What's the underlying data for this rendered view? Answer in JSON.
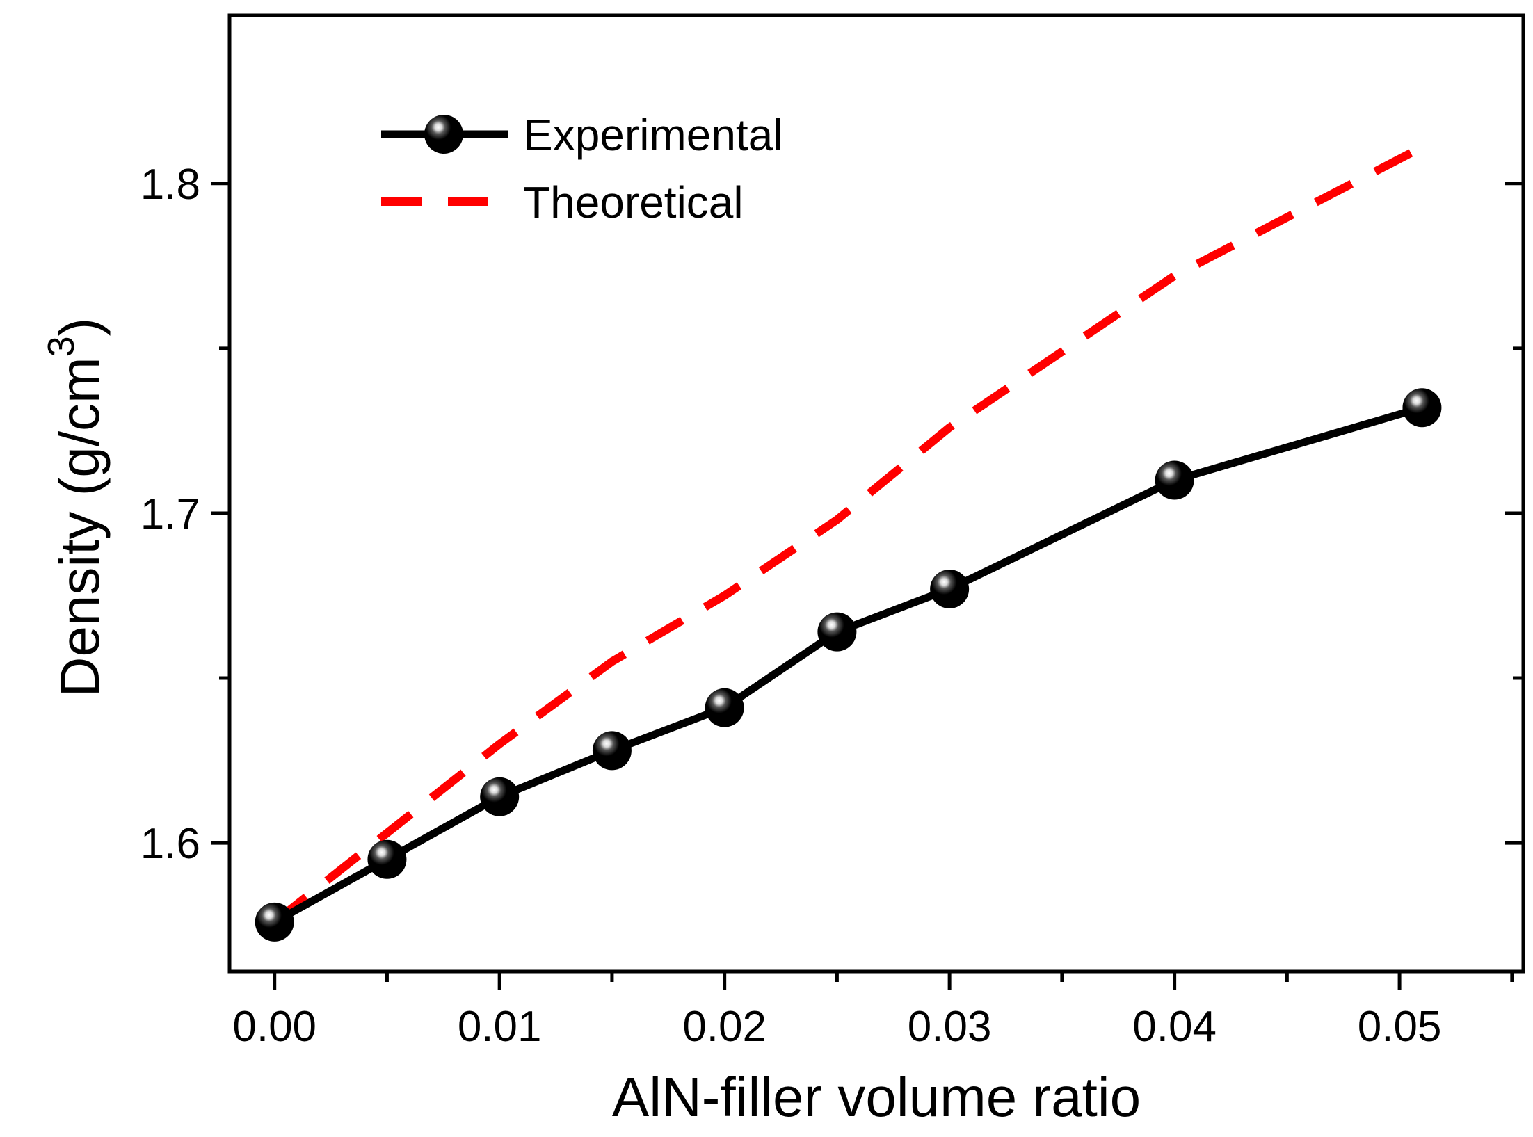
{
  "chart_data": {
    "type": "line",
    "xlabel": "AlN-filler volume ratio",
    "ylabel": "Density (g/cm",
    "ylabel_superscript": "3",
    "ylabel_close": ")",
    "xlim": [
      -0.002,
      0.0555
    ],
    "ylim": [
      1.561,
      1.851
    ],
    "x_ticks": [
      {
        "value": 0.0,
        "label": "0.00"
      },
      {
        "value": 0.01,
        "label": "0.01"
      },
      {
        "value": 0.02,
        "label": "0.02"
      },
      {
        "value": 0.03,
        "label": "0.03"
      },
      {
        "value": 0.04,
        "label": "0.04"
      },
      {
        "value": 0.05,
        "label": "0.05"
      }
    ],
    "x_minor_ticks": [
      0.005,
      0.015,
      0.025,
      0.035,
      0.045,
      0.055
    ],
    "y_ticks": [
      {
        "value": 1.6,
        "label": "1.6"
      },
      {
        "value": 1.7,
        "label": "1.7"
      },
      {
        "value": 1.8,
        "label": "1.8"
      }
    ],
    "y_minor_ticks": [
      1.65,
      1.75
    ],
    "grid": false,
    "legend_position": "top-left",
    "series": [
      {
        "name": "Experimental",
        "style": "solid-markers",
        "color": "#000000",
        "x": [
          0.0,
          0.005,
          0.01,
          0.015,
          0.02,
          0.025,
          0.03,
          0.04,
          0.051
        ],
        "y": [
          1.576,
          1.595,
          1.614,
          1.628,
          1.641,
          1.664,
          1.677,
          1.71,
          1.732
        ]
      },
      {
        "name": "Theoretical",
        "style": "dashed",
        "color": "#ff0000",
        "x": [
          0.0,
          0.005,
          0.01,
          0.015,
          0.02,
          0.025,
          0.03,
          0.04,
          0.051
        ],
        "y": [
          1.576,
          1.603,
          1.63,
          1.655,
          1.675,
          1.698,
          1.726,
          1.772,
          1.811
        ]
      }
    ]
  }
}
